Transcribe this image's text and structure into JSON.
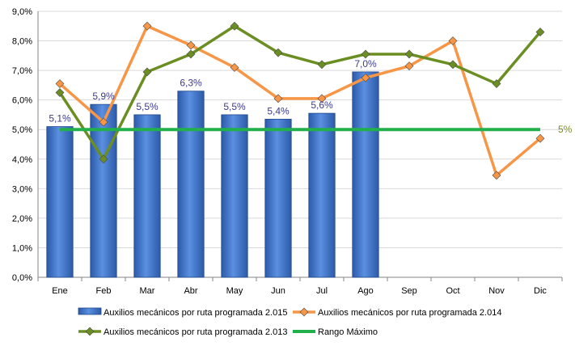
{
  "chart_data": {
    "type": "bar",
    "categories": [
      "Ene",
      "Feb",
      "Mar",
      "Abr",
      "May",
      "Jun",
      "Jul",
      "Ago",
      "Sep",
      "Oct",
      "Nov",
      "Dic"
    ],
    "ylim": [
      0,
      9
    ],
    "yticks": [
      "0,0%",
      "1,0%",
      "2,0%",
      "3,0%",
      "4,0%",
      "5,0%",
      "6,0%",
      "7,0%",
      "8,0%",
      "9,0%"
    ],
    "grid": true,
    "legend_position": "bottom",
    "series": [
      {
        "name": "Auxilios mecánicos por ruta programada 2.015",
        "kind": "bar",
        "color": "#3a6fc4",
        "values": [
          5.1,
          5.85,
          5.5,
          6.3,
          5.5,
          5.35,
          5.55,
          6.95,
          null,
          null,
          null,
          null
        ],
        "labels": [
          "5,1%",
          "5,9%",
          "5,5%",
          "6,3%",
          "5,5%",
          "5,4%",
          "5,6%",
          "7,0%",
          null,
          null,
          null,
          null
        ]
      },
      {
        "name": "Auxilios mecánicos por ruta programada 2.014",
        "kind": "line",
        "color": "#f79646",
        "values": [
          6.55,
          5.25,
          8.5,
          7.85,
          7.1,
          6.05,
          6.05,
          6.75,
          7.15,
          8.0,
          3.45,
          4.7
        ]
      },
      {
        "name": "Auxilios mecánicos por ruta programada 2.013",
        "kind": "line",
        "color": "#6b8e23",
        "values": [
          6.25,
          4.0,
          6.95,
          7.55,
          8.5,
          7.6,
          7.2,
          7.55,
          7.55,
          7.2,
          6.55,
          8.3
        ]
      },
      {
        "name": "Rango Máximo",
        "kind": "line",
        "color": "#22b04c",
        "values": [
          5,
          5,
          5,
          5,
          5,
          5,
          5,
          5,
          5,
          5,
          5,
          5
        ],
        "end_label": "5%"
      }
    ]
  }
}
